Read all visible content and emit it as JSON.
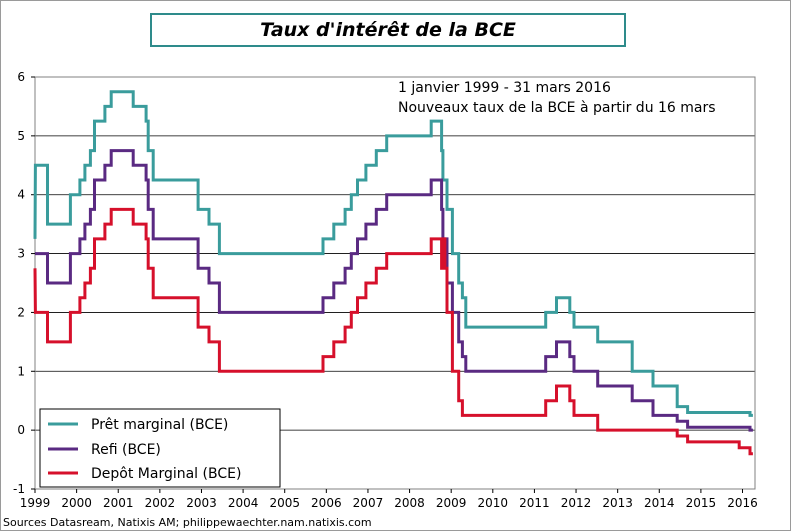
{
  "chart_data": {
    "type": "line",
    "title": "Taux d'intérêt de la BCE",
    "annotation_lines": [
      "1 janvier 1999 - 31 mars 2016",
      "Nouveaux taux de la BCE à partir du 16 mars"
    ],
    "source": "Sources Datasream, Natixis AM; philippewaechter.nam.natixis.com",
    "xlim": [
      1999,
      2016.3
    ],
    "ylim": [
      -1,
      6
    ],
    "x_ticks": [
      "1999",
      "2000",
      "2001",
      "2002",
      "2003",
      "2004",
      "2005",
      "2006",
      "2007",
      "2008",
      "2009",
      "2010",
      "2011",
      "2012",
      "2013",
      "2014",
      "2015",
      "2016"
    ],
    "y_ticks": [
      "-1",
      "0",
      "1",
      "2",
      "3",
      "4",
      "5",
      "6"
    ],
    "grid": true,
    "legend_position": "bottom-left",
    "series": [
      {
        "name": "Prêt marginal (BCE)",
        "color": "#3a9c9c",
        "points": [
          [
            1999.0,
            3.25
          ],
          [
            1999.01,
            4.5
          ],
          [
            1999.3,
            4.5
          ],
          [
            1999.3,
            3.5
          ],
          [
            1999.85,
            3.5
          ],
          [
            1999.85,
            4.0
          ],
          [
            2000.08,
            4.0
          ],
          [
            2000.08,
            4.25
          ],
          [
            2000.2,
            4.25
          ],
          [
            2000.2,
            4.5
          ],
          [
            2000.33,
            4.5
          ],
          [
            2000.33,
            4.75
          ],
          [
            2000.43,
            4.75
          ],
          [
            2000.43,
            5.25
          ],
          [
            2000.68,
            5.25
          ],
          [
            2000.68,
            5.5
          ],
          [
            2000.83,
            5.5
          ],
          [
            2000.83,
            5.75
          ],
          [
            2001.36,
            5.75
          ],
          [
            2001.36,
            5.5
          ],
          [
            2001.67,
            5.5
          ],
          [
            2001.67,
            5.25
          ],
          [
            2001.72,
            5.25
          ],
          [
            2001.72,
            4.75
          ],
          [
            2001.84,
            4.75
          ],
          [
            2001.84,
            4.25
          ],
          [
            2002.92,
            4.25
          ],
          [
            2002.92,
            3.75
          ],
          [
            2003.18,
            3.75
          ],
          [
            2003.18,
            3.5
          ],
          [
            2003.43,
            3.5
          ],
          [
            2003.43,
            3.0
          ],
          [
            2005.92,
            3.0
          ],
          [
            2005.92,
            3.25
          ],
          [
            2006.18,
            3.25
          ],
          [
            2006.18,
            3.5
          ],
          [
            2006.45,
            3.5
          ],
          [
            2006.45,
            3.75
          ],
          [
            2006.6,
            3.75
          ],
          [
            2006.6,
            4.0
          ],
          [
            2006.75,
            4.0
          ],
          [
            2006.75,
            4.25
          ],
          [
            2006.95,
            4.25
          ],
          [
            2006.95,
            4.5
          ],
          [
            2007.2,
            4.5
          ],
          [
            2007.2,
            4.75
          ],
          [
            2007.45,
            4.75
          ],
          [
            2007.45,
            5.0
          ],
          [
            2008.52,
            5.0
          ],
          [
            2008.52,
            5.25
          ],
          [
            2008.77,
            5.25
          ],
          [
            2008.77,
            4.75
          ],
          [
            2008.8,
            4.75
          ],
          [
            2008.8,
            4.25
          ],
          [
            2008.9,
            4.25
          ],
          [
            2008.9,
            3.75
          ],
          [
            2009.03,
            3.75
          ],
          [
            2009.03,
            3.0
          ],
          [
            2009.18,
            3.0
          ],
          [
            2009.18,
            2.5
          ],
          [
            2009.27,
            2.5
          ],
          [
            2009.27,
            2.25
          ],
          [
            2009.35,
            2.25
          ],
          [
            2009.35,
            1.75
          ],
          [
            2011.27,
            1.75
          ],
          [
            2011.27,
            2.0
          ],
          [
            2011.53,
            2.0
          ],
          [
            2011.53,
            2.25
          ],
          [
            2011.85,
            2.25
          ],
          [
            2011.85,
            2.0
          ],
          [
            2011.95,
            2.0
          ],
          [
            2011.95,
            1.75
          ],
          [
            2012.52,
            1.75
          ],
          [
            2012.52,
            1.5
          ],
          [
            2013.35,
            1.5
          ],
          [
            2013.35,
            1.0
          ],
          [
            2013.85,
            1.0
          ],
          [
            2013.85,
            0.75
          ],
          [
            2014.43,
            0.75
          ],
          [
            2014.43,
            0.4
          ],
          [
            2014.68,
            0.4
          ],
          [
            2014.68,
            0.3
          ],
          [
            2016.18,
            0.3
          ],
          [
            2016.18,
            0.25
          ],
          [
            2016.25,
            0.25
          ]
        ]
      },
      {
        "name": "Refi (BCE)",
        "color": "#5a2a82",
        "points": [
          [
            1999.0,
            3.0
          ],
          [
            1999.3,
            3.0
          ],
          [
            1999.3,
            2.5
          ],
          [
            1999.85,
            2.5
          ],
          [
            1999.85,
            3.0
          ],
          [
            2000.08,
            3.0
          ],
          [
            2000.08,
            3.25
          ],
          [
            2000.2,
            3.25
          ],
          [
            2000.2,
            3.5
          ],
          [
            2000.33,
            3.5
          ],
          [
            2000.33,
            3.75
          ],
          [
            2000.43,
            3.75
          ],
          [
            2000.43,
            4.25
          ],
          [
            2000.68,
            4.25
          ],
          [
            2000.68,
            4.5
          ],
          [
            2000.83,
            4.5
          ],
          [
            2000.83,
            4.75
          ],
          [
            2001.36,
            4.75
          ],
          [
            2001.36,
            4.5
          ],
          [
            2001.67,
            4.5
          ],
          [
            2001.67,
            4.25
          ],
          [
            2001.72,
            4.25
          ],
          [
            2001.72,
            3.75
          ],
          [
            2001.84,
            3.75
          ],
          [
            2001.84,
            3.25
          ],
          [
            2002.92,
            3.25
          ],
          [
            2002.92,
            2.75
          ],
          [
            2003.18,
            2.75
          ],
          [
            2003.18,
            2.5
          ],
          [
            2003.43,
            2.5
          ],
          [
            2003.43,
            2.0
          ],
          [
            2005.92,
            2.0
          ],
          [
            2005.92,
            2.25
          ],
          [
            2006.18,
            2.25
          ],
          [
            2006.18,
            2.5
          ],
          [
            2006.45,
            2.5
          ],
          [
            2006.45,
            2.75
          ],
          [
            2006.6,
            2.75
          ],
          [
            2006.6,
            3.0
          ],
          [
            2006.75,
            3.0
          ],
          [
            2006.75,
            3.25
          ],
          [
            2006.95,
            3.25
          ],
          [
            2006.95,
            3.5
          ],
          [
            2007.2,
            3.5
          ],
          [
            2007.2,
            3.75
          ],
          [
            2007.45,
            3.75
          ],
          [
            2007.45,
            4.0
          ],
          [
            2008.52,
            4.0
          ],
          [
            2008.52,
            4.25
          ],
          [
            2008.77,
            4.25
          ],
          [
            2008.77,
            3.75
          ],
          [
            2008.8,
            3.75
          ],
          [
            2008.8,
            3.25
          ],
          [
            2008.9,
            3.25
          ],
          [
            2008.9,
            2.5
          ],
          [
            2009.03,
            2.5
          ],
          [
            2009.03,
            2.0
          ],
          [
            2009.18,
            2.0
          ],
          [
            2009.18,
            1.5
          ],
          [
            2009.27,
            1.5
          ],
          [
            2009.27,
            1.25
          ],
          [
            2009.35,
            1.25
          ],
          [
            2009.35,
            1.0
          ],
          [
            2011.27,
            1.0
          ],
          [
            2011.27,
            1.25
          ],
          [
            2011.53,
            1.25
          ],
          [
            2011.53,
            1.5
          ],
          [
            2011.85,
            1.5
          ],
          [
            2011.85,
            1.25
          ],
          [
            2011.95,
            1.25
          ],
          [
            2011.95,
            1.0
          ],
          [
            2012.52,
            1.0
          ],
          [
            2012.52,
            0.75
          ],
          [
            2013.35,
            0.75
          ],
          [
            2013.35,
            0.5
          ],
          [
            2013.85,
            0.5
          ],
          [
            2013.85,
            0.25
          ],
          [
            2014.43,
            0.25
          ],
          [
            2014.43,
            0.15
          ],
          [
            2014.68,
            0.15
          ],
          [
            2014.68,
            0.05
          ],
          [
            2016.18,
            0.05
          ],
          [
            2016.18,
            0.0
          ],
          [
            2016.25,
            0.0
          ]
        ]
      },
      {
        "name": "Depôt Marginal (BCE)",
        "color": "#d6102b",
        "points": [
          [
            1999.0,
            2.75
          ],
          [
            1999.01,
            2.0
          ],
          [
            1999.3,
            2.0
          ],
          [
            1999.3,
            1.5
          ],
          [
            1999.85,
            1.5
          ],
          [
            1999.85,
            2.0
          ],
          [
            2000.08,
            2.0
          ],
          [
            2000.08,
            2.25
          ],
          [
            2000.2,
            2.25
          ],
          [
            2000.2,
            2.5
          ],
          [
            2000.33,
            2.5
          ],
          [
            2000.33,
            2.75
          ],
          [
            2000.43,
            2.75
          ],
          [
            2000.43,
            3.25
          ],
          [
            2000.68,
            3.25
          ],
          [
            2000.68,
            3.5
          ],
          [
            2000.83,
            3.5
          ],
          [
            2000.83,
            3.75
          ],
          [
            2001.36,
            3.75
          ],
          [
            2001.36,
            3.5
          ],
          [
            2001.67,
            3.5
          ],
          [
            2001.67,
            3.25
          ],
          [
            2001.72,
            3.25
          ],
          [
            2001.72,
            2.75
          ],
          [
            2001.84,
            2.75
          ],
          [
            2001.84,
            2.25
          ],
          [
            2002.92,
            2.25
          ],
          [
            2002.92,
            1.75
          ],
          [
            2003.18,
            1.75
          ],
          [
            2003.18,
            1.5
          ],
          [
            2003.43,
            1.5
          ],
          [
            2003.43,
            1.0
          ],
          [
            2005.92,
            1.0
          ],
          [
            2005.92,
            1.25
          ],
          [
            2006.18,
            1.25
          ],
          [
            2006.18,
            1.5
          ],
          [
            2006.45,
            1.5
          ],
          [
            2006.45,
            1.75
          ],
          [
            2006.6,
            1.75
          ],
          [
            2006.6,
            2.0
          ],
          [
            2006.75,
            2.0
          ],
          [
            2006.75,
            2.25
          ],
          [
            2006.95,
            2.25
          ],
          [
            2006.95,
            2.5
          ],
          [
            2007.2,
            2.5
          ],
          [
            2007.2,
            2.75
          ],
          [
            2007.45,
            2.75
          ],
          [
            2007.45,
            3.0
          ],
          [
            2008.52,
            3.0
          ],
          [
            2008.52,
            3.25
          ],
          [
            2008.77,
            3.25
          ],
          [
            2008.77,
            2.75
          ],
          [
            2008.8,
            2.75
          ],
          [
            2008.8,
            3.25
          ],
          [
            2008.85,
            3.25
          ],
          [
            2008.85,
            2.75
          ],
          [
            2008.9,
            2.75
          ],
          [
            2008.9,
            2.0
          ],
          [
            2009.03,
            2.0
          ],
          [
            2009.03,
            1.0
          ],
          [
            2009.18,
            1.0
          ],
          [
            2009.18,
            0.5
          ],
          [
            2009.27,
            0.5
          ],
          [
            2009.27,
            0.25
          ],
          [
            2011.27,
            0.25
          ],
          [
            2011.27,
            0.5
          ],
          [
            2011.53,
            0.5
          ],
          [
            2011.53,
            0.75
          ],
          [
            2011.85,
            0.75
          ],
          [
            2011.85,
            0.5
          ],
          [
            2011.95,
            0.5
          ],
          [
            2011.95,
            0.25
          ],
          [
            2012.52,
            0.25
          ],
          [
            2012.52,
            0.0
          ],
          [
            2014.43,
            0.0
          ],
          [
            2014.43,
            -0.1
          ],
          [
            2014.68,
            -0.1
          ],
          [
            2014.68,
            -0.2
          ],
          [
            2015.92,
            -0.2
          ],
          [
            2015.92,
            -0.3
          ],
          [
            2016.18,
            -0.3
          ],
          [
            2016.18,
            -0.4
          ],
          [
            2016.25,
            -0.4
          ]
        ]
      }
    ]
  }
}
